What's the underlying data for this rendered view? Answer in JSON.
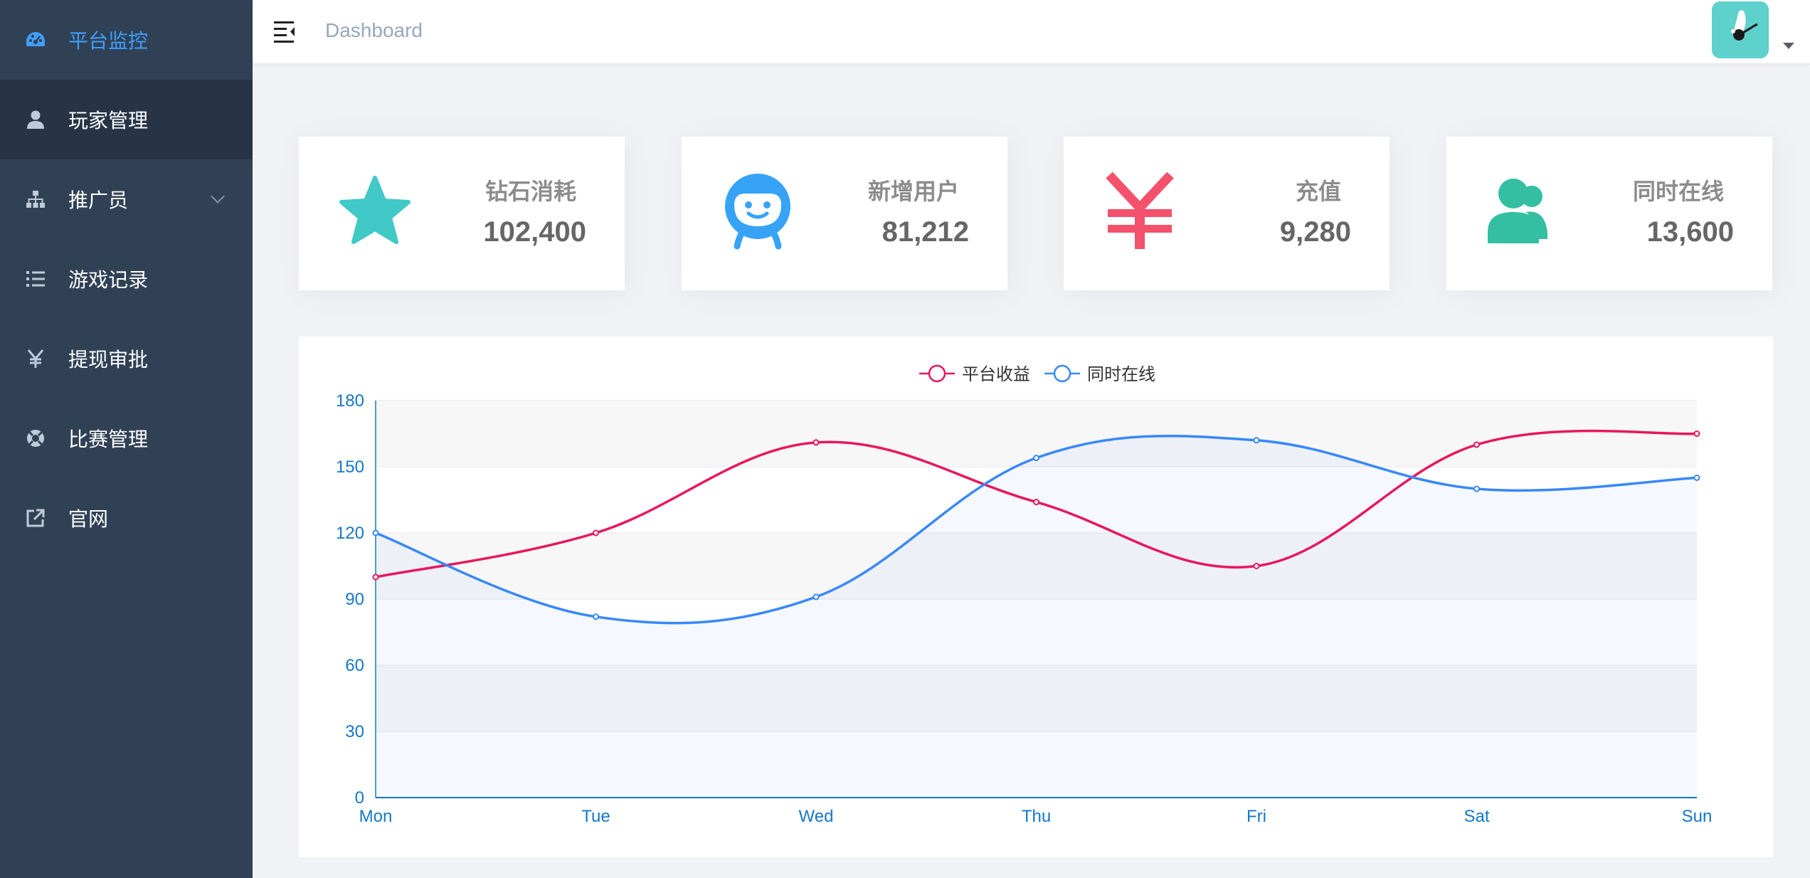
{
  "sidebar": {
    "items": [
      {
        "label": "平台监控",
        "icon": "dashboard-icon",
        "active": true
      },
      {
        "label": "玩家管理",
        "icon": "user-icon"
      },
      {
        "label": "推广员",
        "icon": "org-tree-icon",
        "has_submenu": true
      },
      {
        "label": "游戏记录",
        "icon": "list-icon"
      },
      {
        "label": "提现审批",
        "icon": "yen-icon"
      },
      {
        "label": "比赛管理",
        "icon": "lifebuoy-icon"
      },
      {
        "label": "官网",
        "icon": "external-link-icon"
      }
    ]
  },
  "navbar": {
    "breadcrumb": "Dashboard"
  },
  "cards": [
    {
      "title": "钻石消耗",
      "value": "102,400",
      "icon": "star-icon",
      "color": "#40c9c6"
    },
    {
      "title": "新增用户",
      "value": "81,212",
      "icon": "robot-face-icon",
      "color": "#36a3f7"
    },
    {
      "title": "充值",
      "value": "9,280",
      "icon": "yen-icon",
      "color": "#f4516c"
    },
    {
      "title": "同时在线",
      "value": "13,600",
      "icon": "people-icon",
      "color": "#34bfa3"
    }
  ],
  "chart_data": {
    "type": "line",
    "categories": [
      "Mon",
      "Tue",
      "Wed",
      "Thu",
      "Fri",
      "Sat",
      "Sun"
    ],
    "series": [
      {
        "name": "平台收益",
        "color": "#e8175d",
        "values": [
          100,
          120,
          161,
          134,
          105,
          160,
          165
        ],
        "area": false
      },
      {
        "name": "同时在线",
        "color": "#3888fa",
        "values": [
          120,
          82,
          91,
          154,
          162,
          140,
          145
        ],
        "area": true
      }
    ],
    "ylim": [
      0,
      180
    ],
    "yticks": [
      0,
      30,
      60,
      90,
      120,
      150,
      180
    ],
    "legend": "top-center",
    "grid": true
  }
}
